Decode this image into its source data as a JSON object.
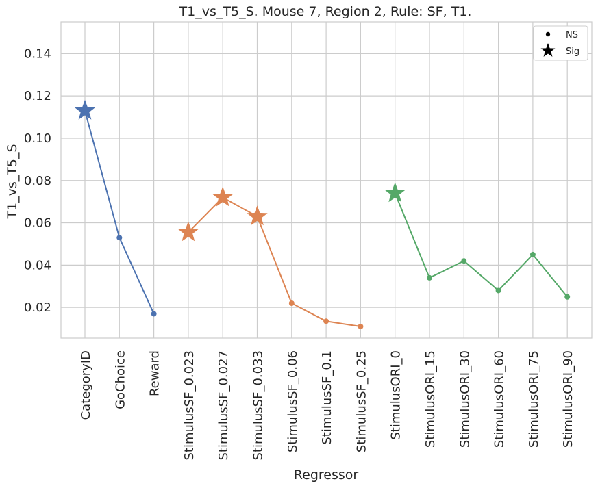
{
  "chart_data": {
    "type": "line",
    "title": "T1_vs_T5_S. Mouse 7, Region 2, Rule: SF, T1.",
    "xlabel": "Regressor",
    "ylabel": "T1_vs_T5_S",
    "ylim": [
      0.0055,
      0.155
    ],
    "yticks": [
      0.02,
      0.04,
      0.06,
      0.08,
      0.1,
      0.12,
      0.14
    ],
    "ytick_labels": [
      "0.02",
      "0.04",
      "0.06",
      "0.08",
      "0.10",
      "0.12",
      "0.14"
    ],
    "grid": true,
    "legend_position": "top-right",
    "legend": [
      {
        "label": "NS",
        "marker": "dot"
      },
      {
        "label": "Sig",
        "marker": "star"
      }
    ],
    "categories": [
      "CategoryID",
      "GoChoice",
      "Reward",
      "StimulusSF_0.023",
      "StimulusSF_0.027",
      "StimulusSF_0.033",
      "StimulusSF_0.06",
      "StimulusSF_0.1",
      "StimulusSF_0.25",
      "StimulusORI_0",
      "StimulusORI_15",
      "StimulusORI_30",
      "StimulusORI_60",
      "StimulusORI_75",
      "StimulusORI_90"
    ],
    "series": [
      {
        "color": "#4c72b0",
        "points": [
          {
            "x": "CategoryID",
            "y": 0.113,
            "sig": true
          },
          {
            "x": "GoChoice",
            "y": 0.053,
            "sig": false
          },
          {
            "x": "Reward",
            "y": 0.017,
            "sig": false
          }
        ]
      },
      {
        "color": "#dd8452",
        "points": [
          {
            "x": "StimulusSF_0.023",
            "y": 0.0555,
            "sig": true
          },
          {
            "x": "StimulusSF_0.027",
            "y": 0.072,
            "sig": true
          },
          {
            "x": "StimulusSF_0.033",
            "y": 0.063,
            "sig": true
          },
          {
            "x": "StimulusSF_0.06",
            "y": 0.022,
            "sig": false
          },
          {
            "x": "StimulusSF_0.1",
            "y": 0.0135,
            "sig": false
          },
          {
            "x": "StimulusSF_0.25",
            "y": 0.011,
            "sig": false
          }
        ]
      },
      {
        "color": "#55a868",
        "points": [
          {
            "x": "StimulusORI_0",
            "y": 0.074,
            "sig": true
          },
          {
            "x": "StimulusORI_15",
            "y": 0.034,
            "sig": false
          },
          {
            "x": "StimulusORI_30",
            "y": 0.042,
            "sig": false
          },
          {
            "x": "StimulusORI_60",
            "y": 0.028,
            "sig": false
          },
          {
            "x": "StimulusORI_75",
            "y": 0.045,
            "sig": false
          },
          {
            "x": "StimulusORI_90",
            "y": 0.025,
            "sig": false
          }
        ]
      }
    ]
  }
}
